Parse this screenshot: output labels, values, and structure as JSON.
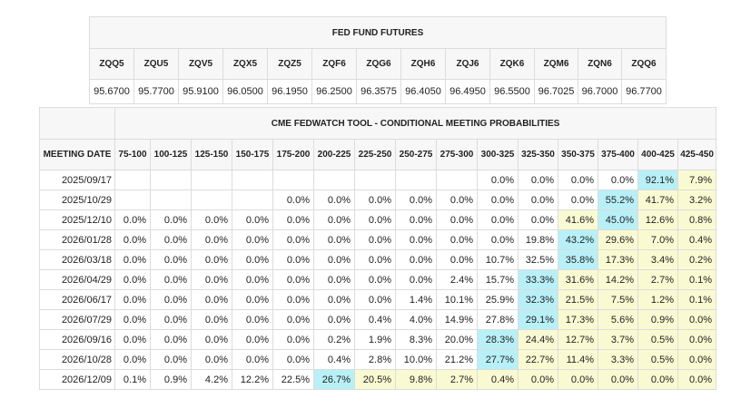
{
  "futures": {
    "title": "FED FUND FUTURES",
    "headers": [
      "ZQQ5",
      "ZQU5",
      "ZQV5",
      "ZQX5",
      "ZQZ5",
      "ZQF6",
      "ZQG6",
      "ZQH6",
      "ZQJ6",
      "ZQK6",
      "ZQM6",
      "ZQN6",
      "ZQQ6"
    ],
    "values": [
      "95.6700",
      "95.7700",
      "95.9100",
      "96.0500",
      "96.1950",
      "96.2500",
      "96.3575",
      "96.4050",
      "96.4950",
      "96.5500",
      "96.7025",
      "96.7000",
      "96.7700"
    ]
  },
  "fedwatch": {
    "title": "CME FEDWATCH TOOL - CONDITIONAL MEETING PROBABILITIES",
    "date_header": "MEETING DATE",
    "ranges": [
      "75-100",
      "100-125",
      "125-150",
      "150-175",
      "175-200",
      "200-225",
      "225-250",
      "250-275",
      "275-300",
      "300-325",
      "325-350",
      "350-375",
      "375-400",
      "400-425",
      "425-450"
    ],
    "colors": {
      "highlight_blue": "#b8f0f8",
      "highlight_yellow": "#fafad2"
    },
    "rows": [
      {
        "date": "2025/09/17",
        "cells": [
          "",
          "",
          "",
          "",
          "",
          "",
          "",
          "",
          "",
          "0.0%",
          "0.0%",
          "0.0%",
          "0.0%",
          "92.1%",
          "7.9%"
        ],
        "styles": "eeeeeeeeewwwwby"
      },
      {
        "date": "2025/10/29",
        "cells": [
          "",
          "",
          "",
          "",
          "0.0%",
          "0.0%",
          "0.0%",
          "0.0%",
          "0.0%",
          "0.0%",
          "0.0%",
          "0.0%",
          "55.2%",
          "41.7%",
          "3.2%"
        ],
        "styles": "eeeeewwwwwwwbyy"
      },
      {
        "date": "2025/12/10",
        "cells": [
          "0.0%",
          "0.0%",
          "0.0%",
          "0.0%",
          "0.0%",
          "0.0%",
          "0.0%",
          "0.0%",
          "0.0%",
          "0.0%",
          "0.0%",
          "41.6%",
          "45.0%",
          "12.6%",
          "0.8%"
        ],
        "styles": "wwwwwwwwwwwybyy"
      },
      {
        "date": "2026/01/28",
        "cells": [
          "0.0%",
          "0.0%",
          "0.0%",
          "0.0%",
          "0.0%",
          "0.0%",
          "0.0%",
          "0.0%",
          "0.0%",
          "0.0%",
          "19.8%",
          "43.2%",
          "29.6%",
          "7.0%",
          "0.4%"
        ],
        "styles": "wwwwwwwwwwwbyyy"
      },
      {
        "date": "2026/03/18",
        "cells": [
          "0.0%",
          "0.0%",
          "0.0%",
          "0.0%",
          "0.0%",
          "0.0%",
          "0.0%",
          "0.0%",
          "0.0%",
          "10.7%",
          "32.5%",
          "35.8%",
          "17.3%",
          "3.4%",
          "0.2%"
        ],
        "styles": "wwwwwwwwwwwbyyy"
      },
      {
        "date": "2026/04/29",
        "cells": [
          "0.0%",
          "0.0%",
          "0.0%",
          "0.0%",
          "0.0%",
          "0.0%",
          "0.0%",
          "0.0%",
          "2.4%",
          "15.7%",
          "33.3%",
          "31.6%",
          "14.2%",
          "2.7%",
          "0.1%"
        ],
        "styles": "wwwwwwwwwwbyyyy"
      },
      {
        "date": "2026/06/17",
        "cells": [
          "0.0%",
          "0.0%",
          "0.0%",
          "0.0%",
          "0.0%",
          "0.0%",
          "0.0%",
          "1.4%",
          "10.1%",
          "25.9%",
          "32.3%",
          "21.5%",
          "7.5%",
          "1.2%",
          "0.1%"
        ],
        "styles": "wwwwwwwwwwbyyyy"
      },
      {
        "date": "2026/07/29",
        "cells": [
          "0.0%",
          "0.0%",
          "0.0%",
          "0.0%",
          "0.0%",
          "0.0%",
          "0.4%",
          "4.0%",
          "14.9%",
          "27.8%",
          "29.1%",
          "17.3%",
          "5.6%",
          "0.9%",
          "0.0%"
        ],
        "styles": "wwwwwwwwwwbyyyy"
      },
      {
        "date": "2026/09/16",
        "cells": [
          "0.0%",
          "0.0%",
          "0.0%",
          "0.0%",
          "0.0%",
          "0.2%",
          "1.9%",
          "8.3%",
          "20.0%",
          "28.3%",
          "24.4%",
          "12.7%",
          "3.7%",
          "0.5%",
          "0.0%"
        ],
        "styles": "wwwwwwwwwbyyyyy"
      },
      {
        "date": "2026/10/28",
        "cells": [
          "0.0%",
          "0.0%",
          "0.0%",
          "0.0%",
          "0.0%",
          "0.4%",
          "2.8%",
          "10.0%",
          "21.2%",
          "27.7%",
          "22.7%",
          "11.4%",
          "3.3%",
          "0.5%",
          "0.0%"
        ],
        "styles": "wwwwwwwwwbyyyyy"
      },
      {
        "date": "2026/12/09",
        "cells": [
          "0.1%",
          "0.9%",
          "4.2%",
          "12.2%",
          "22.5%",
          "26.7%",
          "20.5%",
          "9.8%",
          "2.7%",
          "0.4%",
          "0.0%",
          "0.0%",
          "0.0%",
          "0.0%",
          "0.0%"
        ],
        "styles": "wwwwwbyyyyyyyyy"
      }
    ]
  }
}
